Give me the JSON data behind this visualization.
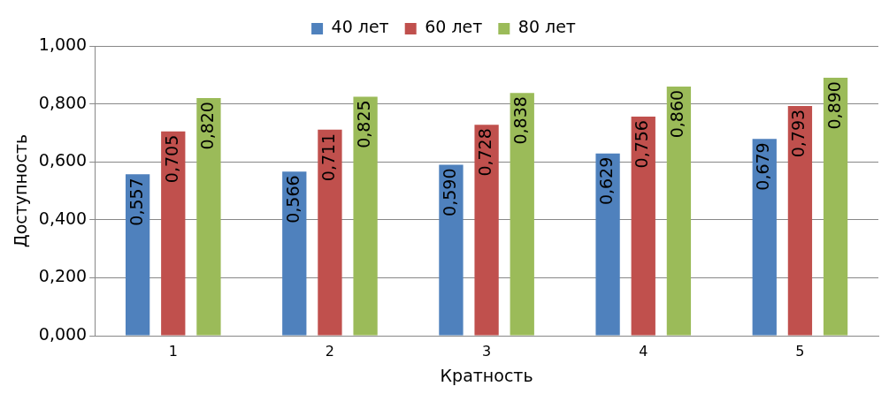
{
  "chart_data": {
    "type": "bar",
    "xlabel": "Кратность",
    "ylabel": "Доступность",
    "categories": [
      "1",
      "2",
      "3",
      "4",
      "5"
    ],
    "series": [
      {
        "name": "40 лет",
        "color": "#4f81bd",
        "values": [
          0.557,
          0.566,
          0.59,
          0.629,
          0.679
        ],
        "value_labels": [
          "0,557",
          "0,566",
          "0,590",
          "0,629",
          "0,679"
        ]
      },
      {
        "name": "60 лет",
        "color": "#c0504d",
        "values": [
          0.705,
          0.711,
          0.728,
          0.756,
          0.793
        ],
        "value_labels": [
          "0,705",
          "0,711",
          "0,728",
          "0,756",
          "0,793"
        ]
      },
      {
        "name": "80 лет",
        "color": "#9bbb59",
        "values": [
          0.82,
          0.825,
          0.838,
          0.86,
          0.89
        ],
        "value_labels": [
          "0,820",
          "0,825",
          "0,838",
          "0,860",
          "0,890"
        ]
      }
    ],
    "ylim": [
      0,
      1
    ],
    "yticks": [
      {
        "value": 0,
        "label": "0,000"
      },
      {
        "value": 0.2,
        "label": "0,200"
      },
      {
        "value": 0.4,
        "label": "0,400"
      },
      {
        "value": 0.6,
        "label": "0,600"
      },
      {
        "value": 0.8,
        "label": "0,800"
      },
      {
        "value": 1,
        "label": "1,000"
      }
    ],
    "grid": "y",
    "legend": "top"
  }
}
